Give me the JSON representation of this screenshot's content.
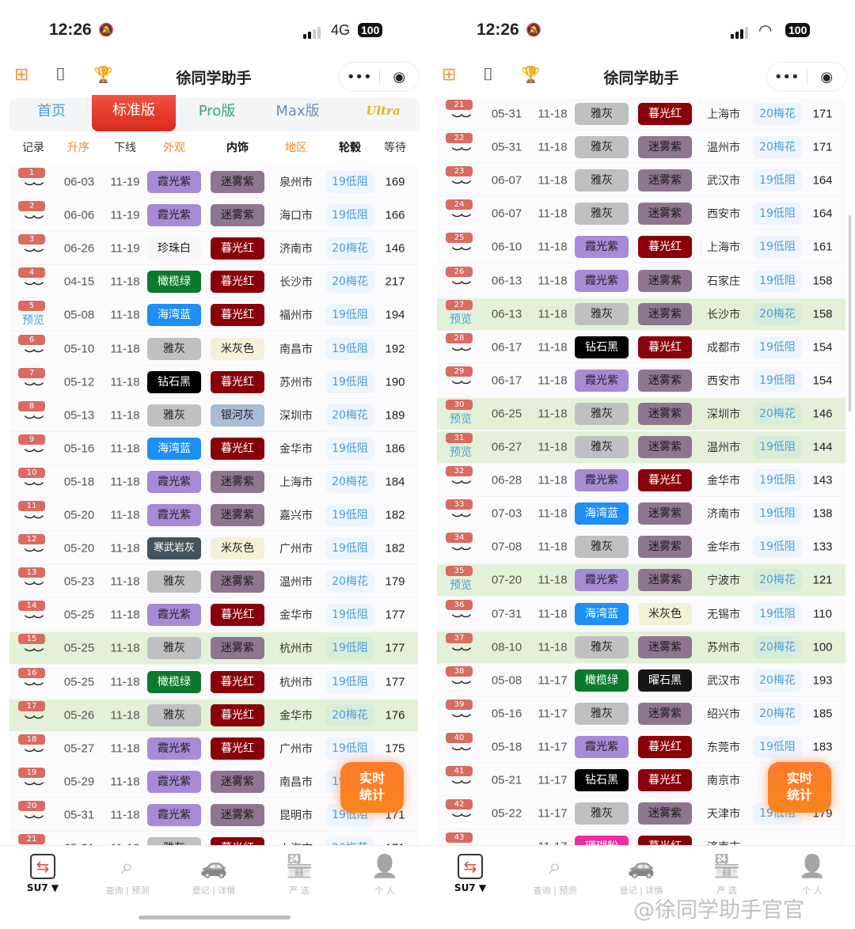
{
  "app_title": "徐同学助手",
  "status": {
    "time": "12:26",
    "network_left": "4G",
    "battery": "100"
  },
  "tabs": [
    "首页",
    "标准版",
    "Pro版",
    "Max版",
    "Ultra"
  ],
  "active_tab": "标准版",
  "table_headers": [
    "记录",
    "升序",
    "下线",
    "外观",
    "内饰",
    "地区",
    "轮毂",
    "等待"
  ],
  "preview_label": "预览",
  "fab_label": [
    "实时",
    "统计"
  ],
  "tabbar": [
    {
      "label": "SU7 ▼",
      "icon": "switch-icon"
    },
    {
      "label": "查询 | 预测",
      "icon": "search-icon"
    },
    {
      "label": "登记 | 详情",
      "icon": "car-icon"
    },
    {
      "label": "严 选",
      "icon": "store-icon"
    },
    {
      "label": "个 人",
      "icon": "user-icon"
    }
  ],
  "watermark": "@徐同学助手官官",
  "colors": {
    "霞光紫": [
      "#a78bd6",
      "#222"
    ],
    "迷雾紫": [
      "#8e7690",
      "#1a1a1a"
    ],
    "暮光红": [
      "#8a0008",
      "#fff"
    ],
    "珍珠白": [
      "#f7f7f9",
      "#222"
    ],
    "橄榄绿": [
      "#0b7a2c",
      "#fff"
    ],
    "海湾蓝": [
      "#1e8ff5",
      "#fff"
    ],
    "雅灰": [
      "#c0c0c2",
      "#222"
    ],
    "米灰色": [
      "#f4f1d9",
      "#222"
    ],
    "钻石黑": [
      "#000000",
      "#fff"
    ],
    "银河灰": [
      "#a9bcd6",
      "#222"
    ],
    "寒武岩灰": [
      "#46535c",
      "#fff"
    ],
    "曜石黑": [
      "#161616",
      "#fff"
    ],
    "珊瑚粉": [
      "#f02ea0",
      "#fff"
    ],
    "accent": "#e0503c",
    "highlight_row": "#e2f1d7"
  },
  "left_rows": [
    {
      "n": "1",
      "d": "06-03",
      "o": "11-19",
      "e": "霞光紫",
      "i": "迷雾紫",
      "r": "泉州市",
      "w": "19低阻",
      "t": "169"
    },
    {
      "n": "2",
      "d": "06-06",
      "o": "11-19",
      "e": "霞光紫",
      "i": "迷雾紫",
      "r": "海口市",
      "w": "19低阻",
      "t": "166"
    },
    {
      "n": "3",
      "d": "06-26",
      "o": "11-19",
      "e": "珍珠白",
      "i": "暮光红",
      "r": "济南市",
      "w": "20梅花",
      "t": "146"
    },
    {
      "n": "4",
      "d": "04-15",
      "o": "11-18",
      "e": "橄榄绿",
      "i": "暮光红",
      "r": "长沙市",
      "w": "20梅花",
      "t": "217"
    },
    {
      "n": "5",
      "d": "05-08",
      "o": "11-18",
      "e": "海湾蓝",
      "i": "暮光红",
      "r": "福州市",
      "w": "19低阻",
      "t": "194",
      "p": true
    },
    {
      "n": "6",
      "d": "05-10",
      "o": "11-18",
      "e": "雅灰",
      "i": "米灰色",
      "r": "南昌市",
      "w": "19低阻",
      "t": "192"
    },
    {
      "n": "7",
      "d": "05-12",
      "o": "11-18",
      "e": "钻石黑",
      "i": "暮光红",
      "r": "苏州市",
      "w": "19低阻",
      "t": "190"
    },
    {
      "n": "8",
      "d": "05-13",
      "o": "11-18",
      "e": "雅灰",
      "i": "银河灰",
      "r": "深圳市",
      "w": "20梅花",
      "t": "189"
    },
    {
      "n": "9",
      "d": "05-16",
      "o": "11-18",
      "e": "海湾蓝",
      "i": "暮光红",
      "r": "金华市",
      "w": "19低阻",
      "t": "186"
    },
    {
      "n": "10",
      "d": "05-18",
      "o": "11-18",
      "e": "霞光紫",
      "i": "迷雾紫",
      "r": "上海市",
      "w": "20梅花",
      "t": "184"
    },
    {
      "n": "11",
      "d": "05-20",
      "o": "11-18",
      "e": "霞光紫",
      "i": "迷雾紫",
      "r": "嘉兴市",
      "w": "19低阻",
      "t": "182"
    },
    {
      "n": "12",
      "d": "05-20",
      "o": "11-18",
      "e": "寒武岩灰",
      "i": "米灰色",
      "r": "广州市",
      "w": "19低阻",
      "t": "182"
    },
    {
      "n": "13",
      "d": "05-23",
      "o": "11-18",
      "e": "雅灰",
      "i": "迷雾紫",
      "r": "温州市",
      "w": "20梅花",
      "t": "179"
    },
    {
      "n": "14",
      "d": "05-25",
      "o": "11-18",
      "e": "霞光紫",
      "i": "暮光红",
      "r": "金华市",
      "w": "19低阻",
      "t": "177"
    },
    {
      "n": "15",
      "d": "05-25",
      "o": "11-18",
      "e": "雅灰",
      "i": "迷雾紫",
      "r": "杭州市",
      "w": "19低阻",
      "t": "177",
      "h": true
    },
    {
      "n": "16",
      "d": "05-25",
      "o": "11-18",
      "e": "橄榄绿",
      "i": "暮光红",
      "r": "杭州市",
      "w": "19低阻",
      "t": "177"
    },
    {
      "n": "17",
      "d": "05-26",
      "o": "11-18",
      "e": "雅灰",
      "i": "暮光红",
      "r": "金华市",
      "w": "20梅花",
      "t": "176",
      "h": true
    },
    {
      "n": "18",
      "d": "05-27",
      "o": "11-18",
      "e": "霞光紫",
      "i": "暮光红",
      "r": "广州市",
      "w": "19低阻",
      "t": "175"
    },
    {
      "n": "19",
      "d": "05-29",
      "o": "11-18",
      "e": "霞光紫",
      "i": "迷雾紫",
      "r": "南昌市",
      "w": "19低阻",
      "t": ""
    },
    {
      "n": "20",
      "d": "05-31",
      "o": "11-18",
      "e": "霞光紫",
      "i": "迷雾紫",
      "r": "昆明市",
      "w": "19低阻",
      "t": "171"
    },
    {
      "n": "21",
      "d": "05-31",
      "o": "11-18",
      "e": "雅灰",
      "i": "暮光红",
      "r": "上海市",
      "w": "20梅花",
      "t": "171"
    }
  ],
  "right_rows": [
    {
      "n": "21",
      "d": "05-31",
      "o": "11-18",
      "e": "雅灰",
      "i": "暮光红",
      "r": "上海市",
      "w": "20梅花",
      "t": "171"
    },
    {
      "n": "22",
      "d": "05-31",
      "o": "11-18",
      "e": "雅灰",
      "i": "迷雾紫",
      "r": "温州市",
      "w": "20梅花",
      "t": "171"
    },
    {
      "n": "23",
      "d": "06-07",
      "o": "11-18",
      "e": "雅灰",
      "i": "迷雾紫",
      "r": "武汉市",
      "w": "19低阻",
      "t": "164"
    },
    {
      "n": "24",
      "d": "06-07",
      "o": "11-18",
      "e": "雅灰",
      "i": "迷雾紫",
      "r": "西安市",
      "w": "19低阻",
      "t": "164"
    },
    {
      "n": "25",
      "d": "06-10",
      "o": "11-18",
      "e": "霞光紫",
      "i": "暮光红",
      "r": "上海市",
      "w": "19低阻",
      "t": "161"
    },
    {
      "n": "26",
      "d": "06-13",
      "o": "11-18",
      "e": "霞光紫",
      "i": "迷雾紫",
      "r": "石家庄",
      "w": "19低阻",
      "t": "158"
    },
    {
      "n": "27",
      "d": "06-13",
      "o": "11-18",
      "e": "雅灰",
      "i": "迷雾紫",
      "r": "长沙市",
      "w": "20梅花",
      "t": "158",
      "h": true,
      "p": true
    },
    {
      "n": "28",
      "d": "06-17",
      "o": "11-18",
      "e": "钻石黑",
      "i": "暮光红",
      "r": "成都市",
      "w": "19低阻",
      "t": "154"
    },
    {
      "n": "29",
      "d": "06-17",
      "o": "11-18",
      "e": "霞光紫",
      "i": "迷雾紫",
      "r": "西安市",
      "w": "19低阻",
      "t": "154"
    },
    {
      "n": "30",
      "d": "06-25",
      "o": "11-18",
      "e": "雅灰",
      "i": "迷雾紫",
      "r": "深圳市",
      "w": "20梅花",
      "t": "146",
      "h": true,
      "p": true
    },
    {
      "n": "31",
      "d": "06-27",
      "o": "11-18",
      "e": "雅灰",
      "i": "迷雾紫",
      "r": "温州市",
      "w": "19低阻",
      "t": "144",
      "h": true,
      "p": true
    },
    {
      "n": "32",
      "d": "06-28",
      "o": "11-18",
      "e": "霞光紫",
      "i": "暮光红",
      "r": "金华市",
      "w": "19低阻",
      "t": "143"
    },
    {
      "n": "33",
      "d": "07-03",
      "o": "11-18",
      "e": "海湾蓝",
      "i": "迷雾紫",
      "r": "济南市",
      "w": "19低阻",
      "t": "138"
    },
    {
      "n": "34",
      "d": "07-08",
      "o": "11-18",
      "e": "雅灰",
      "i": "迷雾紫",
      "r": "金华市",
      "w": "19低阻",
      "t": "133"
    },
    {
      "n": "35",
      "d": "07-20",
      "o": "11-18",
      "e": "霞光紫",
      "i": "迷雾紫",
      "r": "宁波市",
      "w": "20梅花",
      "t": "121",
      "h": true,
      "p": true
    },
    {
      "n": "36",
      "d": "07-31",
      "o": "11-18",
      "e": "海湾蓝",
      "i": "米灰色",
      "r": "无锡市",
      "w": "19低阻",
      "t": "110"
    },
    {
      "n": "37",
      "d": "08-10",
      "o": "11-18",
      "e": "雅灰",
      "i": "迷雾紫",
      "r": "苏州市",
      "w": "20梅花",
      "t": "100",
      "h": true
    },
    {
      "n": "38",
      "d": "05-08",
      "o": "11-17",
      "e": "橄榄绿",
      "i": "曜石黑",
      "r": "武汉市",
      "w": "20梅花",
      "t": "193"
    },
    {
      "n": "39",
      "d": "05-16",
      "o": "11-17",
      "e": "雅灰",
      "i": "迷雾紫",
      "r": "绍兴市",
      "w": "20梅花",
      "t": "185"
    },
    {
      "n": "40",
      "d": "05-18",
      "o": "11-17",
      "e": "霞光紫",
      "i": "暮光红",
      "r": "东莞市",
      "w": "19低阻",
      "t": "183"
    },
    {
      "n": "41",
      "d": "05-21",
      "o": "11-17",
      "e": "钻石黑",
      "i": "暮光红",
      "r": "南京市",
      "w": "",
      "t": ""
    },
    {
      "n": "42",
      "d": "05-22",
      "o": "11-17",
      "e": "雅灰",
      "i": "迷雾紫",
      "r": "天津市",
      "w": "19低阻",
      "t": "179"
    },
    {
      "n": "43",
      "d": "",
      "o": "11-17",
      "e": "珊瑚粉",
      "i": "暮光红",
      "r": "济南市",
      "w": "",
      "t": ""
    }
  ]
}
